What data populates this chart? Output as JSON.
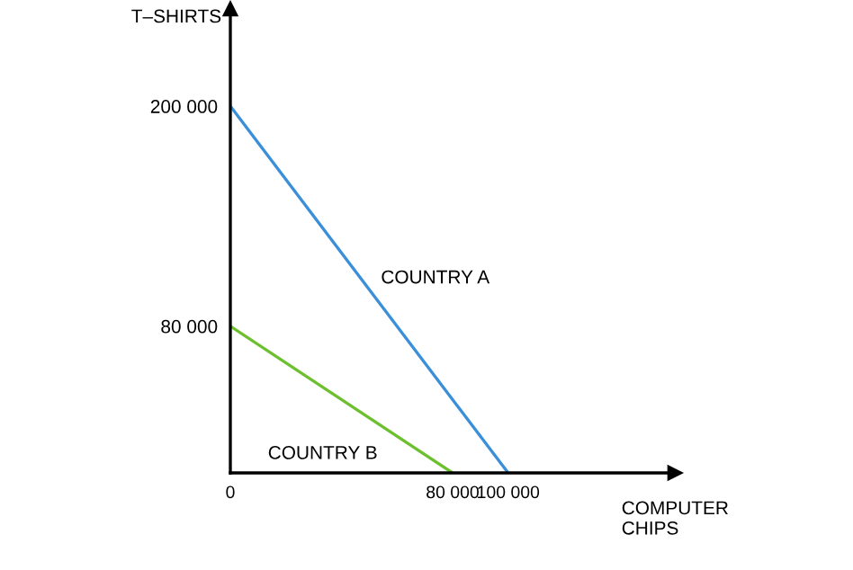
{
  "chart_data": {
    "type": "line",
    "xlabel": "COMPUTER\nCHIPS",
    "ylabel": "T–SHIRTS",
    "series": [
      {
        "name": "COUNTRY A",
        "color": "#3b8fd8",
        "x": [
          0,
          100000
        ],
        "values": [
          200000,
          0
        ]
      },
      {
        "name": "COUNTRY B",
        "color": "#6cbf2e",
        "x": [
          0,
          80000
        ],
        "values": [
          80000,
          0
        ]
      }
    ],
    "xlim": [
      0,
      160000
    ],
    "ylim": [
      0,
      253000
    ],
    "xticks": [
      0,
      {
        "value": 80000,
        "label": "80 000"
      },
      {
        "value": 100000,
        "label": "100 000"
      }
    ],
    "yticks": [
      {
        "value": 80000,
        "label": "80 000"
      },
      {
        "value": 200000,
        "label": "200 000"
      }
    ],
    "grid": false,
    "legend": false,
    "marker": "none",
    "line_style": "solid"
  }
}
